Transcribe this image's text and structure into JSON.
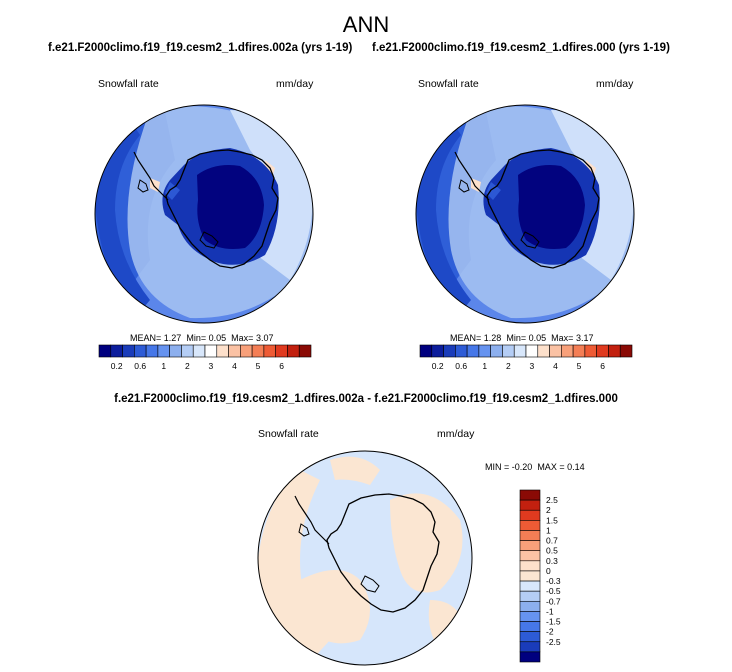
{
  "title": "ANN",
  "panels": [
    {
      "case_title": "f.e21.F2000climo.f19_f19.cesm2_1.dfires.002a (yrs 1-19)",
      "variable": "Snowfall rate",
      "units": "mm/day",
      "mean_label": "MEAN=",
      "mean": "1.27",
      "min_label": "Min=",
      "min": "0.05",
      "max_label": "Max=",
      "max": "3.07"
    },
    {
      "case_title": "f.e21.F2000climo.f19_f19.cesm2_1.dfires.000 (yrs 1-19)",
      "variable": "Snowfall rate",
      "units": "mm/day",
      "mean_label": "MEAN=",
      "mean": "1.28",
      "min_label": "Min=",
      "min": "0.05",
      "max_label": "Max=",
      "max": "3.17"
    }
  ],
  "colorbar": {
    "colors": [
      "#00007f",
      "#0c1d9c",
      "#1a3cba",
      "#2d5bd6",
      "#4677e8",
      "#6693f0",
      "#8cafee",
      "#b4cdf5",
      "#d8e7fb",
      "#ffffff",
      "#fde0cb",
      "#fbc2a4",
      "#f8a07a",
      "#f47e55",
      "#ee5b35",
      "#e03a1f",
      "#c2200f",
      "#8a0a05"
    ],
    "tick_labels": [
      "0.2",
      "0.6",
      "1",
      "2",
      "3",
      "4",
      "5",
      "6"
    ]
  },
  "difference": {
    "title": "f.e21.F2000climo.f19_f19.cesm2_1.dfires.002a - f.e21.F2000climo.f19_f19.cesm2_1.dfires.000",
    "variable": "Snowfall rate",
    "units": "mm/day",
    "min_label": "MIN =",
    "min": "-0.20",
    "max_label": "MAX =",
    "max": "0.14",
    "colorbar": {
      "colors": [
        "#8a0a05",
        "#c2200f",
        "#e03a1f",
        "#ee5b35",
        "#f47e55",
        "#f8a07a",
        "#fbc2a4",
        "#fde0cb",
        "#fbe6d2",
        "#d8e7fb",
        "#b4cdf5",
        "#8cafee",
        "#6693f0",
        "#4677e8",
        "#2d5bd6",
        "#1a3cba",
        "#00007f"
      ],
      "tick_labels": [
        "2.5",
        "2",
        "1.5",
        "1",
        "0.7",
        "0.5",
        "0.3",
        "0",
        "-0.3",
        "-0.5",
        "-0.7",
        "-1",
        "-1.5",
        "-2",
        "-2.5"
      ]
    }
  }
}
